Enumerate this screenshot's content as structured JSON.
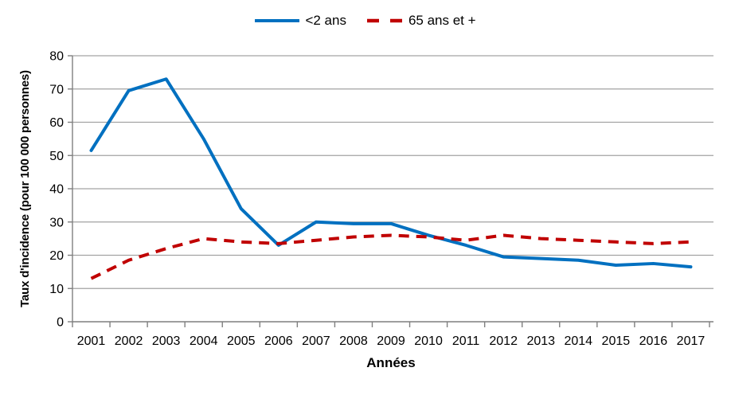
{
  "chart_data": {
    "type": "line",
    "xlabel": "Années",
    "ylabel": "Taux d'incidence (pour 100 000 personnes)",
    "categories": [
      "2001",
      "2002",
      "2003",
      "2004",
      "2005",
      "2006",
      "2007",
      "2008",
      "2009",
      "2010",
      "2011",
      "2012",
      "2013",
      "2014",
      "2015",
      "2016",
      "2017"
    ],
    "ylim": [
      0,
      80
    ],
    "yticks": [
      0,
      10,
      20,
      30,
      40,
      50,
      60,
      70,
      80
    ],
    "grid": "horizontal",
    "legend_position": "top-center",
    "series": [
      {
        "name": "<2 ans",
        "style": "solid",
        "color": "#0070C0",
        "values": [
          51.5,
          69.5,
          73,
          55,
          34,
          23,
          30,
          29.5,
          29.5,
          26,
          23,
          19.5,
          19,
          18.5,
          17,
          17.5,
          16.5
        ]
      },
      {
        "name": "65 ans et +",
        "style": "dashed",
        "color": "#C00000",
        "values": [
          13,
          18.5,
          22,
          25,
          24,
          23.5,
          24.5,
          25.5,
          26,
          25.5,
          24.5,
          26,
          25,
          24.5,
          24,
          23.5,
          24
        ]
      }
    ]
  },
  "colors": {
    "gridline": "#A3A3A3",
    "axis": "#7F7F7F",
    "background": "#FFFFFF",
    "text": "#000000"
  }
}
